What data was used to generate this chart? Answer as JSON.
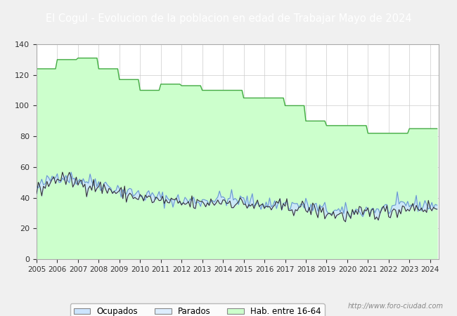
{
  "title": "El Cogul - Evolucion de la poblacion en edad de Trabajar Mayo de 2024",
  "title_bg": "#4472c4",
  "title_color": "white",
  "ylim": [
    0,
    140
  ],
  "yticks": [
    0,
    20,
    40,
    60,
    80,
    100,
    120,
    140
  ],
  "watermark": "http://www.foro-ciudad.com",
  "legend_labels": [
    "Ocupados",
    "Parados",
    "Hab. entre 16-64"
  ],
  "hab_annual": [
    124,
    130,
    131,
    124,
    117,
    110,
    114,
    113,
    110,
    110,
    105,
    105,
    100,
    90,
    87,
    87,
    82,
    82,
    85
  ],
  "ocu_base_x": [
    2005,
    2006,
    2007,
    2008,
    2009,
    2010,
    2011,
    2012,
    2013,
    2014,
    2015,
    2016,
    2017,
    2018,
    2019,
    2020,
    2021,
    2022,
    2023,
    2024.4
  ],
  "ocu_base_y": [
    46,
    55,
    52,
    50,
    45,
    42,
    40,
    38,
    38,
    40,
    38,
    36,
    36,
    35,
    32,
    30,
    32,
    33,
    36,
    35
  ],
  "par_base_x": [
    2005,
    2006,
    2007,
    2008,
    2009,
    2010,
    2011,
    2012,
    2013,
    2014,
    2015,
    2016,
    2017,
    2018,
    2019,
    2020,
    2021,
    2022,
    2023,
    2024.4
  ],
  "par_base_y": [
    44,
    53,
    50,
    47,
    43,
    40,
    38,
    36,
    36,
    38,
    36,
    34,
    34,
    33,
    30,
    28,
    30,
    31,
    34,
    33
  ],
  "background_color": "#f0f0f0",
  "plot_bg": "#ffffff",
  "grid_color": "#cccccc",
  "hab_fill_color": "#ccffcc",
  "hab_line_color": "#44aa44",
  "ocupados_fill_color": "#cce5ff",
  "ocupados_line_color": "#6699cc",
  "parados_line_color": "#333333",
  "font_color": "#333333",
  "noise_seed": 42,
  "noise_std": 2.5
}
